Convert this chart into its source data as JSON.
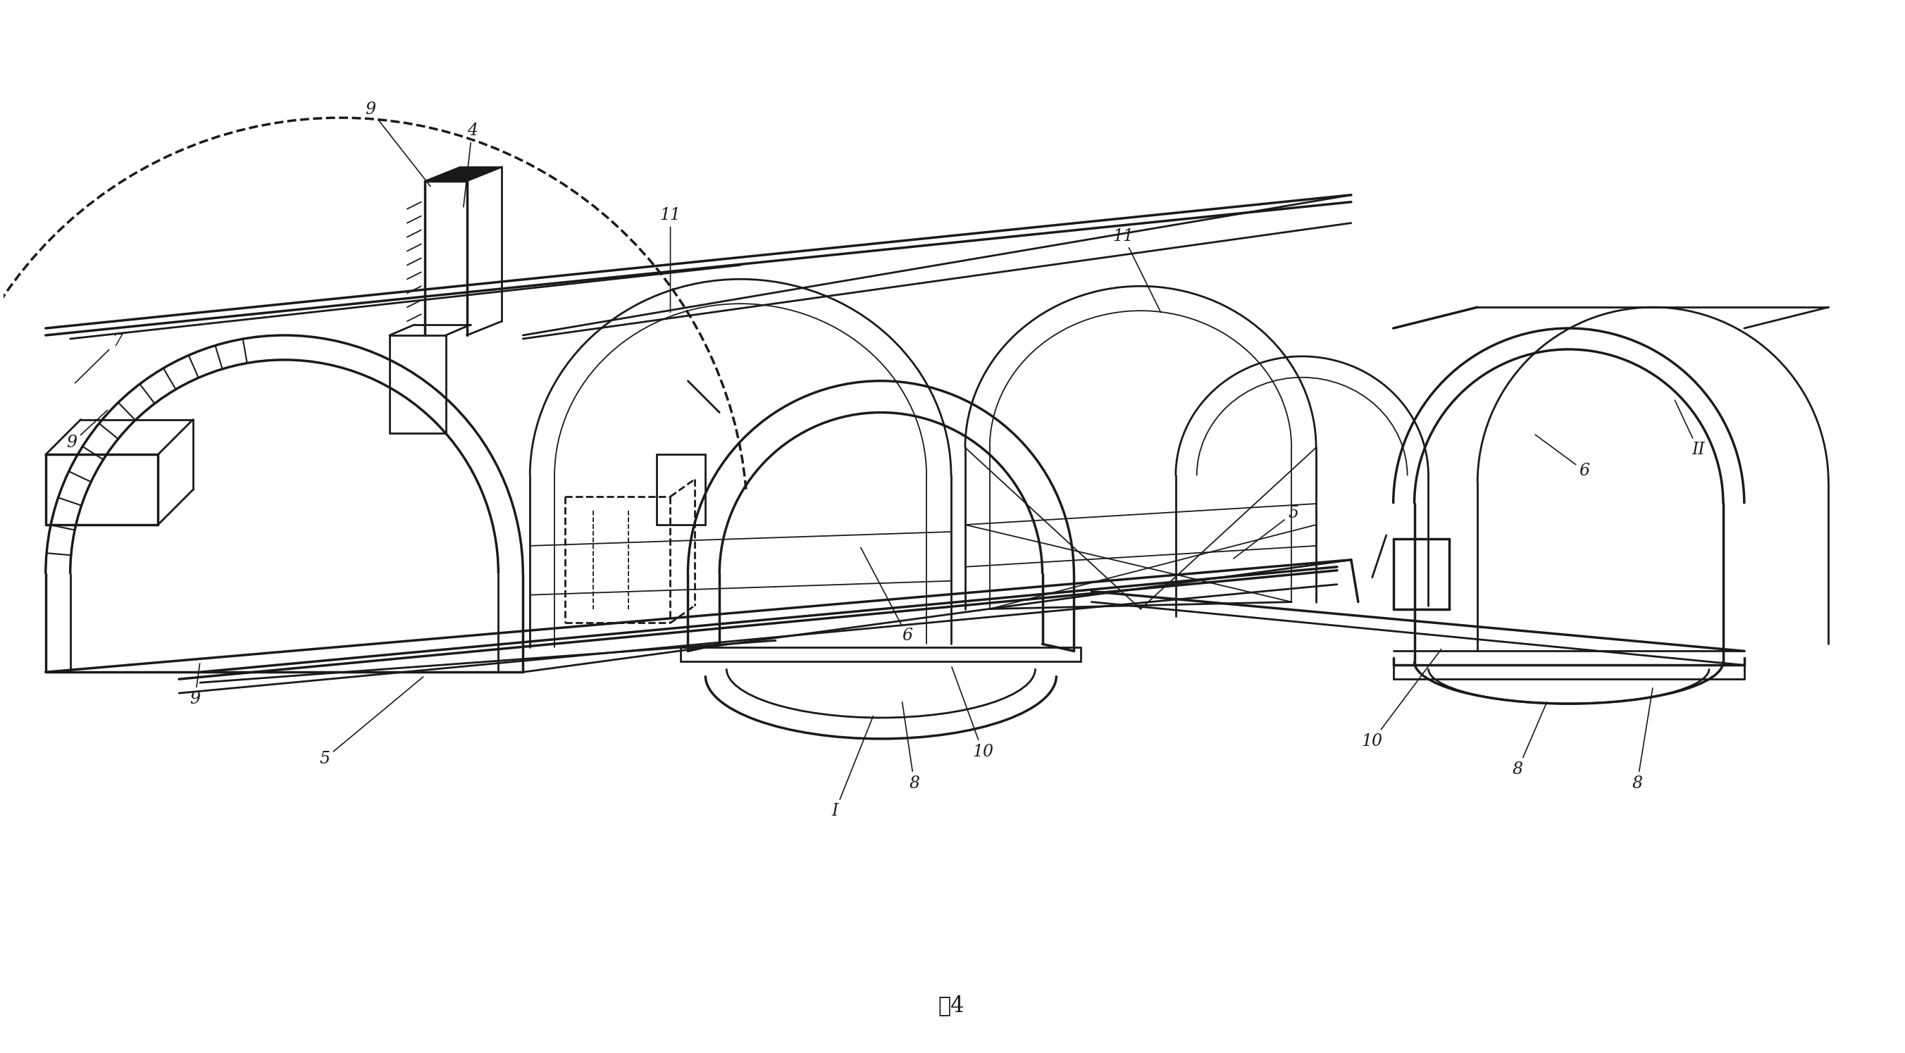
{
  "bg_color": "#ffffff",
  "line_color": "#1a1a1a",
  "caption": "图4",
  "fig_width": 27.04,
  "fig_height": 14.95,
  "lw_main": 2.0,
  "lw_thin": 1.3,
  "lw_thick": 2.5,
  "label_fontsize": 17,
  "caption_fontsize": 22
}
